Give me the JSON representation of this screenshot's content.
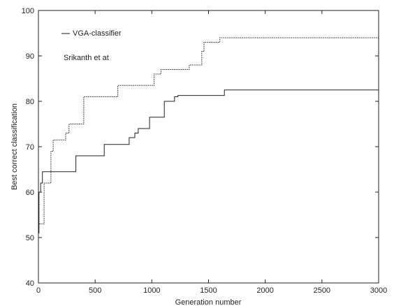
{
  "chart_data": {
    "type": "line",
    "title": "",
    "xlabel": "Generation number",
    "ylabel": "Best correct classification",
    "xlim": [
      0,
      3000
    ],
    "ylim": [
      40,
      100
    ],
    "xticks": [
      0,
      500,
      1000,
      1500,
      2000,
      2500,
      3000
    ],
    "yticks": [
      40,
      50,
      60,
      70,
      80,
      90,
      100
    ],
    "grid": false,
    "legend_position": "top-left",
    "series": [
      {
        "name": "VGA-classifier",
        "style": "solid",
        "x": [
          0,
          5,
          5,
          20,
          20,
          35,
          35,
          330,
          330,
          580,
          580,
          800,
          800,
          850,
          850,
          880,
          880,
          980,
          980,
          1110,
          1110,
          1200,
          1200,
          1230,
          1230,
          1640,
          1640,
          3000
        ],
        "y": [
          51,
          51,
          60,
          60,
          62,
          62,
          64.5,
          64.5,
          68,
          68,
          70.5,
          70.5,
          72,
          72,
          73,
          73,
          74,
          74,
          76.5,
          76.5,
          80,
          80,
          81,
          81,
          81.3,
          81.3,
          82.5,
          82.5
        ]
      },
      {
        "name": "Srikanth et al",
        "style": "dotted",
        "x": [
          10,
          50,
          50,
          110,
          110,
          130,
          130,
          240,
          240,
          270,
          270,
          400,
          400,
          700,
          700,
          1020,
          1020,
          1080,
          1080,
          1330,
          1330,
          1440,
          1440,
          1460,
          1460,
          1600,
          1600,
          3000
        ],
        "y": [
          53,
          53,
          62,
          62,
          69,
          69,
          71.5,
          71.5,
          73,
          73,
          75,
          75,
          81,
          81,
          83.5,
          83.5,
          86,
          86,
          87,
          87,
          88,
          88,
          91,
          91,
          93,
          93,
          94,
          94
        ]
      }
    ],
    "legend": [
      {
        "label": "VGA-classifier",
        "marker": "—"
      },
      {
        "label": "Srikanth et at",
        "marker": ""
      }
    ]
  }
}
